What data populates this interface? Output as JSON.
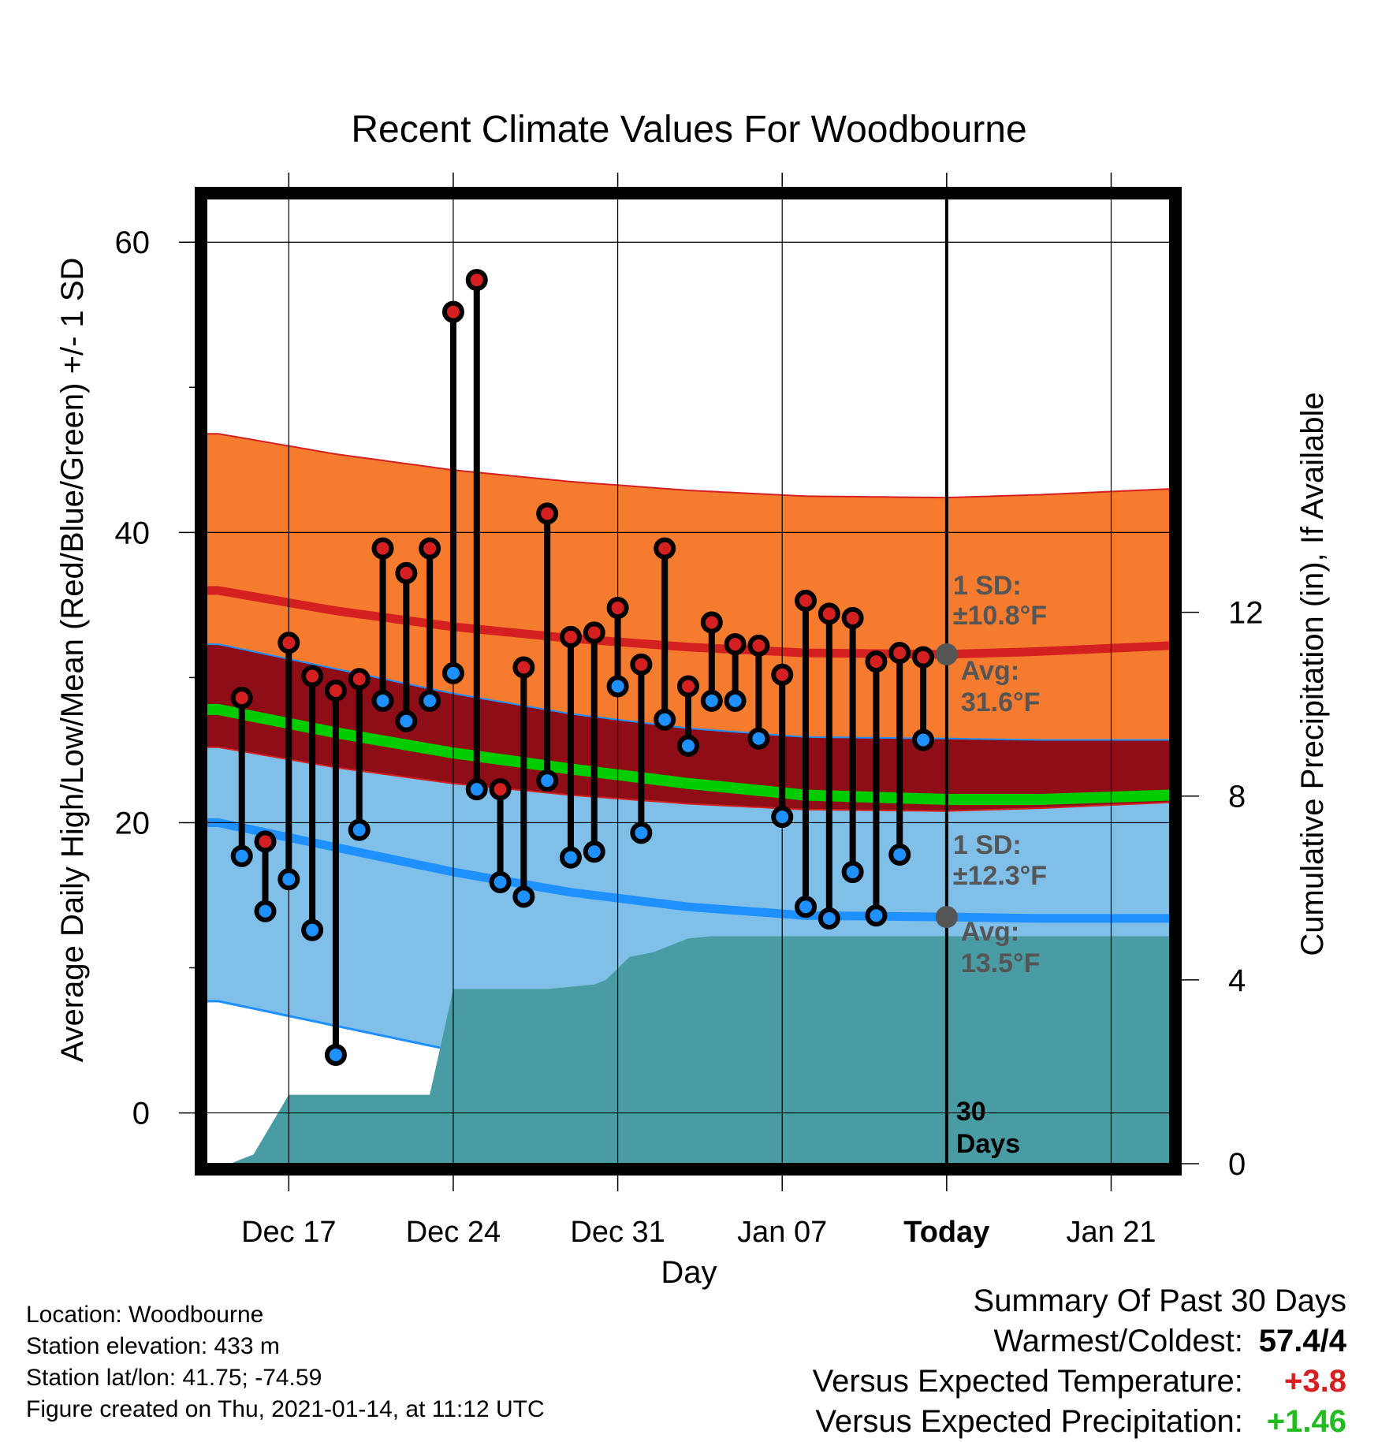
{
  "chart_data": {
    "type": "line",
    "title": "Recent Climate Values For Woodbourne",
    "xlabel": "Day",
    "ylabel_left": "Average Daily High/Low/Mean (Red/Blue/Green) +/- 1 SD",
    "ylabel_right": "Cumulative Precipitation (in), If Available",
    "x_tick_labels": [
      "Dec 17",
      "Dec 24",
      "Dec 31",
      "Jan 07",
      "Today",
      "Jan 21"
    ],
    "x_tick_days": [
      3,
      10,
      17,
      24,
      31,
      38
    ],
    "xlim_days": [
      -0.5,
      40.5
    ],
    "ylim_left": [
      -3.5,
      63
    ],
    "y_ticks_left": [
      0,
      20,
      40,
      60
    ],
    "ylim_right": [
      0,
      21
    ],
    "y_ticks_right": [
      0,
      4,
      8,
      12
    ],
    "today_day": 31,
    "today_marker_text": [
      "30",
      "Days"
    ],
    "normals": {
      "days": [
        0,
        5,
        10,
        15,
        20,
        25,
        31,
        35,
        40.5
      ],
      "high_mean": [
        36.0,
        34.6,
        33.5,
        32.7,
        32.1,
        31.7,
        31.6,
        31.8,
        32.2
      ],
      "low_mean": [
        20.0,
        18.3,
        16.6,
        15.2,
        14.2,
        13.6,
        13.5,
        13.4,
        13.4
      ],
      "mean_mean": [
        27.8,
        26.2,
        24.8,
        23.7,
        22.7,
        21.9,
        21.6,
        21.6,
        21.9
      ]
    },
    "high_sd": 10.8,
    "low_sd": 12.3,
    "annotations": {
      "high": {
        "sd_label": "1 SD:",
        "sd_value": "±10.8°F",
        "avg_label": "Avg:",
        "avg_value": "31.6°F"
      },
      "low": {
        "sd_label": "1 SD:",
        "sd_value": "±12.3°F",
        "avg_label": "Avg:",
        "avg_value": "13.5°F"
      }
    },
    "series": [
      {
        "name": "High",
        "color": "#d42020",
        "values": [
          28.6,
          18.7,
          32.4,
          30.1,
          29.1,
          29.9,
          38.9,
          37.2,
          38.9,
          55.2,
          57.4,
          22.3,
          30.7,
          41.3,
          32.8,
          33.1,
          34.8,
          30.9,
          38.9,
          29.4,
          33.8,
          32.3,
          32.2,
          30.2,
          35.3,
          34.4,
          34.1,
          31.1,
          31.7,
          31.4
        ]
      },
      {
        "name": "Low",
        "color": "#1e90ff",
        "values": [
          17.7,
          13.9,
          16.1,
          12.6,
          4.0,
          19.5,
          28.4,
          27.0,
          28.4,
          30.3,
          22.3,
          15.9,
          14.9,
          22.9,
          17.6,
          18.0,
          29.4,
          19.3,
          27.1,
          25.3,
          28.4,
          28.4,
          25.8,
          20.4,
          14.2,
          13.4,
          16.6,
          13.6,
          17.8,
          25.7
        ]
      }
    ],
    "observation_days": [
      1,
      2,
      3,
      4,
      5,
      6,
      7,
      8,
      9,
      10,
      11,
      12,
      13,
      14,
      15,
      16,
      17,
      18,
      19,
      20,
      21,
      22,
      23,
      24,
      25,
      26,
      27,
      28,
      29,
      30
    ],
    "precipitation_cumulative": {
      "days": [
        0.5,
        1.5,
        3,
        6,
        8,
        9,
        10,
        12.5,
        14,
        16,
        16.5,
        17.5,
        18.5,
        19.5,
        20,
        21,
        22,
        23,
        24,
        31,
        40.5
      ],
      "values": [
        0,
        0.2,
        1.5,
        1.5,
        1.5,
        1.5,
        3.8,
        3.8,
        3.8,
        3.9,
        4.0,
        4.5,
        4.6,
        4.8,
        4.9,
        4.95,
        4.95,
        4.95,
        4.95,
        4.95,
        4.95
      ]
    },
    "colors": {
      "high_band": "#f57c2e",
      "mean_band": "#8e0d16",
      "mean_line": "#00cc00",
      "low_band": "#80c0e8",
      "high_line": "#d42020",
      "low_line": "#1e90ff",
      "precip": "#4a9ca4",
      "annotation": "#555555"
    }
  },
  "info": {
    "location": "Location: Woodbourne",
    "elevation": "Station elevation: 433 m",
    "latlon": "Station lat/lon: 41.75; -74.59",
    "created": "Figure created on Thu, 2021-01-14, at 11:12 UTC"
  },
  "summary": {
    "title": "Summary Of Past 30 Days",
    "rows": [
      {
        "label": "Warmest/Coldest:",
        "value": "57.4/4",
        "color": "#000000"
      },
      {
        "label": "Versus Expected Temperature:",
        "value": "+3.8",
        "color": "#d42020"
      },
      {
        "label": "Versus Expected Precipitation:",
        "value": "+1.46",
        "color": "#22bb22"
      }
    ]
  }
}
